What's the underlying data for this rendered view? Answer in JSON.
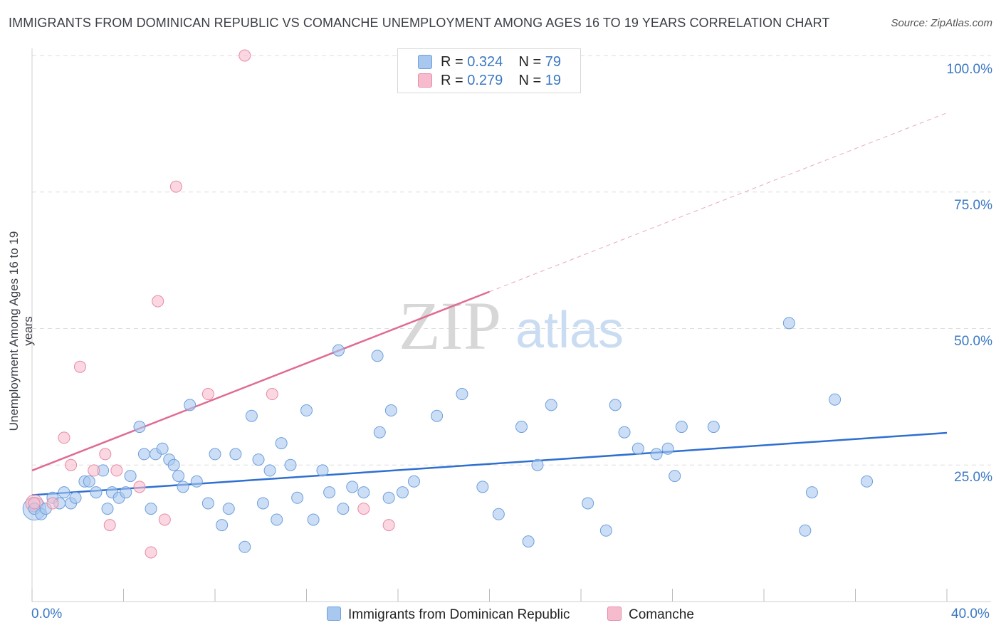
{
  "title": "IMMIGRANTS FROM DOMINICAN REPUBLIC VS COMANCHE UNEMPLOYMENT AMONG AGES 16 TO 19 YEARS CORRELATION CHART",
  "source": "Source: ZipAtlas.com",
  "watermark": {
    "zip": "ZIP",
    "atlas": "atlas"
  },
  "legend_top": [
    {
      "r_label": "R =",
      "r_value": "0.324",
      "n_label": "N =",
      "n_value": "79"
    },
    {
      "r_label": "R =",
      "r_value": "0.279",
      "n_label": "N =",
      "n_value": "19"
    }
  ],
  "colors": {
    "blue_fill": "#a9c8ef",
    "blue_stroke": "#6d9fdc",
    "blue_line": "#2f6fcf",
    "pink_fill": "#f6bccd",
    "pink_stroke": "#e88aa6",
    "pink_line": "#e06b93",
    "tick_text": "#3a78c3",
    "grid": "#dddddd"
  },
  "chart_data": {
    "type": "scatter",
    "title": "IMMIGRANTS FROM DOMINICAN REPUBLIC VS COMANCHE UNEMPLOYMENT AMONG AGES 16 TO 19 YEARS CORRELATION CHART",
    "xlabel": "",
    "ylabel": "Unemployment Among Ages 16 to 19 years",
    "xlim": [
      0,
      40
    ],
    "ylim": [
      0,
      100
    ],
    "x_tick_labels": [
      "0.0%",
      "40.0%"
    ],
    "y_tick_labels": [
      "25.0%",
      "50.0%",
      "75.0%",
      "100.0%"
    ],
    "y_ticks": [
      25,
      50,
      75,
      100
    ],
    "grid": true,
    "series": [
      {
        "name": "Immigrants from Dominican Republic",
        "color": "#a9c8ef",
        "trend": {
          "x": [
            0,
            40
          ],
          "y": [
            19.5,
            30.9
          ],
          "solid_until": 40
        },
        "points": [
          [
            0.1,
            17
          ],
          [
            0.4,
            16
          ],
          [
            0.6,
            17
          ],
          [
            0.9,
            19
          ],
          [
            1.2,
            18
          ],
          [
            1.4,
            20
          ],
          [
            1.7,
            18
          ],
          [
            1.9,
            19
          ],
          [
            2.3,
            22
          ],
          [
            2.5,
            22
          ],
          [
            2.8,
            20
          ],
          [
            3.1,
            24
          ],
          [
            3.3,
            17
          ],
          [
            3.5,
            20
          ],
          [
            3.8,
            19
          ],
          [
            4.1,
            20
          ],
          [
            4.3,
            23
          ],
          [
            4.7,
            32
          ],
          [
            4.9,
            27
          ],
          [
            5.2,
            17
          ],
          [
            5.4,
            27
          ],
          [
            5.7,
            28
          ],
          [
            6.0,
            26
          ],
          [
            6.2,
            25
          ],
          [
            6.4,
            23
          ],
          [
            6.6,
            21
          ],
          [
            6.9,
            36
          ],
          [
            7.2,
            22
          ],
          [
            7.7,
            18
          ],
          [
            8.0,
            27
          ],
          [
            8.3,
            14
          ],
          [
            8.6,
            17
          ],
          [
            8.9,
            27
          ],
          [
            9.3,
            10
          ],
          [
            9.6,
            34
          ],
          [
            9.9,
            26
          ],
          [
            10.1,
            18
          ],
          [
            10.4,
            24
          ],
          [
            10.7,
            15
          ],
          [
            10.9,
            29
          ],
          [
            11.3,
            25
          ],
          [
            11.6,
            19
          ],
          [
            12.0,
            35
          ],
          [
            12.3,
            15
          ],
          [
            12.7,
            24
          ],
          [
            13.0,
            20
          ],
          [
            13.4,
            46
          ],
          [
            13.6,
            17
          ],
          [
            14.0,
            21
          ],
          [
            14.5,
            20
          ],
          [
            15.1,
            45
          ],
          [
            15.2,
            31
          ],
          [
            15.6,
            19
          ],
          [
            15.7,
            35
          ],
          [
            16.2,
            20
          ],
          [
            16.7,
            22
          ],
          [
            17.7,
            34
          ],
          [
            18.8,
            38
          ],
          [
            19.7,
            21
          ],
          [
            20.4,
            16
          ],
          [
            21.4,
            32
          ],
          [
            21.7,
            11
          ],
          [
            22.1,
            25
          ],
          [
            22.7,
            36
          ],
          [
            24.3,
            18
          ],
          [
            25.1,
            13
          ],
          [
            25.5,
            36
          ],
          [
            25.9,
            31
          ],
          [
            26.5,
            28
          ],
          [
            27.3,
            27
          ],
          [
            27.8,
            28
          ],
          [
            28.1,
            23
          ],
          [
            28.4,
            32
          ],
          [
            29.8,
            32
          ],
          [
            33.1,
            51
          ],
          [
            33.8,
            13
          ],
          [
            34.1,
            20
          ],
          [
            35.1,
            37
          ],
          [
            36.5,
            22
          ]
        ]
      },
      {
        "name": "Comanche",
        "color": "#f6bccd",
        "trend": {
          "x": [
            0,
            40
          ],
          "y": [
            24.0,
            89.5
          ],
          "solid_until": 20
        },
        "points": [
          [
            0.1,
            18
          ],
          [
            0.9,
            18
          ],
          [
            1.4,
            30
          ],
          [
            1.7,
            25
          ],
          [
            2.1,
            43
          ],
          [
            2.7,
            24
          ],
          [
            3.2,
            27
          ],
          [
            3.4,
            14
          ],
          [
            3.7,
            24
          ],
          [
            4.7,
            21
          ],
          [
            5.2,
            9
          ],
          [
            5.5,
            55
          ],
          [
            5.8,
            15
          ],
          [
            6.3,
            76
          ],
          [
            7.7,
            38
          ],
          [
            9.3,
            100
          ],
          [
            10.5,
            38
          ],
          [
            15.6,
            14
          ],
          [
            14.5,
            17
          ]
        ]
      }
    ]
  },
  "x_axis": {
    "min_label": "0.0%",
    "max_label": "40.0%"
  },
  "legend_bottom": [
    "Immigrants from Dominican Republic",
    "Comanche"
  ]
}
